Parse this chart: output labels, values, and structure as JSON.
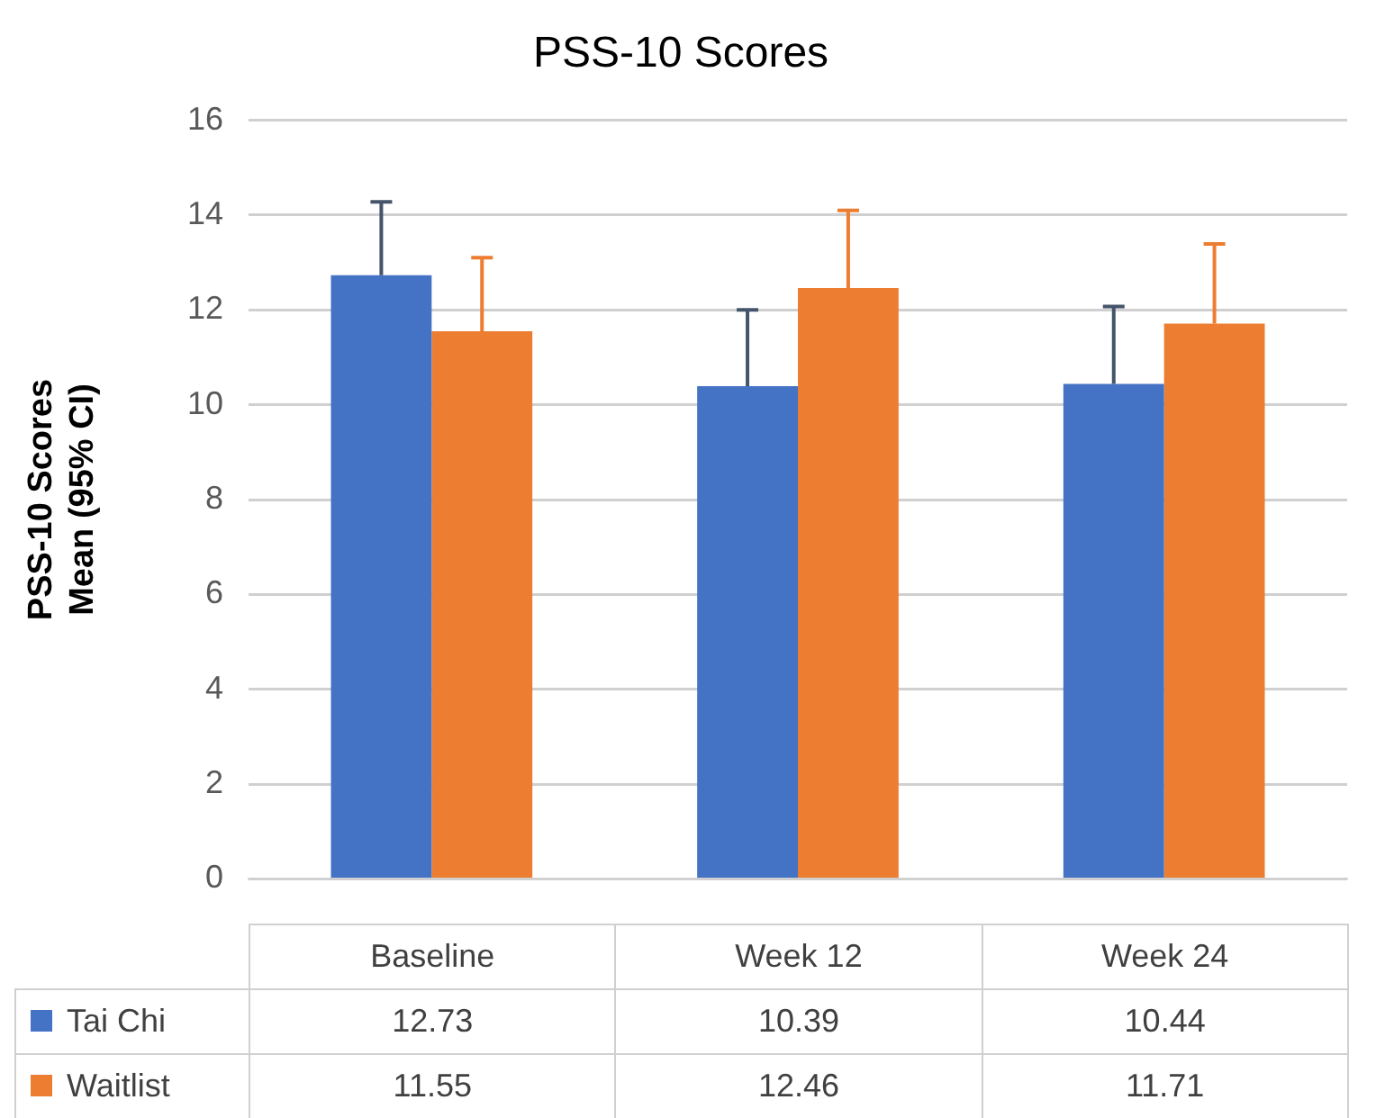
{
  "chart_data": {
    "type": "bar",
    "title": "PSS-10 Scores",
    "ylabel": "PSS-10 Scores\nMean (95% CI)",
    "categories": [
      "Baseline",
      "Week 12",
      "Week 24"
    ],
    "series": [
      {
        "name": "Tai Chi",
        "color": "#4472c4",
        "values": [
          12.73,
          10.39,
          10.44
        ],
        "errors": [
          [
            12.73,
            14.28
          ],
          [
            10.39,
            12.0
          ],
          [
            10.44,
            12.07
          ]
        ]
      },
      {
        "name": "Waitlist",
        "color": "#ed7d31",
        "values": [
          11.55,
          12.46,
          11.71
        ],
        "errors": [
          [
            11.55,
            13.1
          ],
          [
            12.46,
            14.1
          ],
          [
            11.71,
            13.39
          ]
        ]
      }
    ],
    "ylim": [
      0,
      16
    ],
    "yticks": [
      0,
      2,
      4,
      6,
      8,
      10,
      12,
      14,
      16
    ],
    "grid": "y",
    "legend": "bottom",
    "data_labels": true
  }
}
